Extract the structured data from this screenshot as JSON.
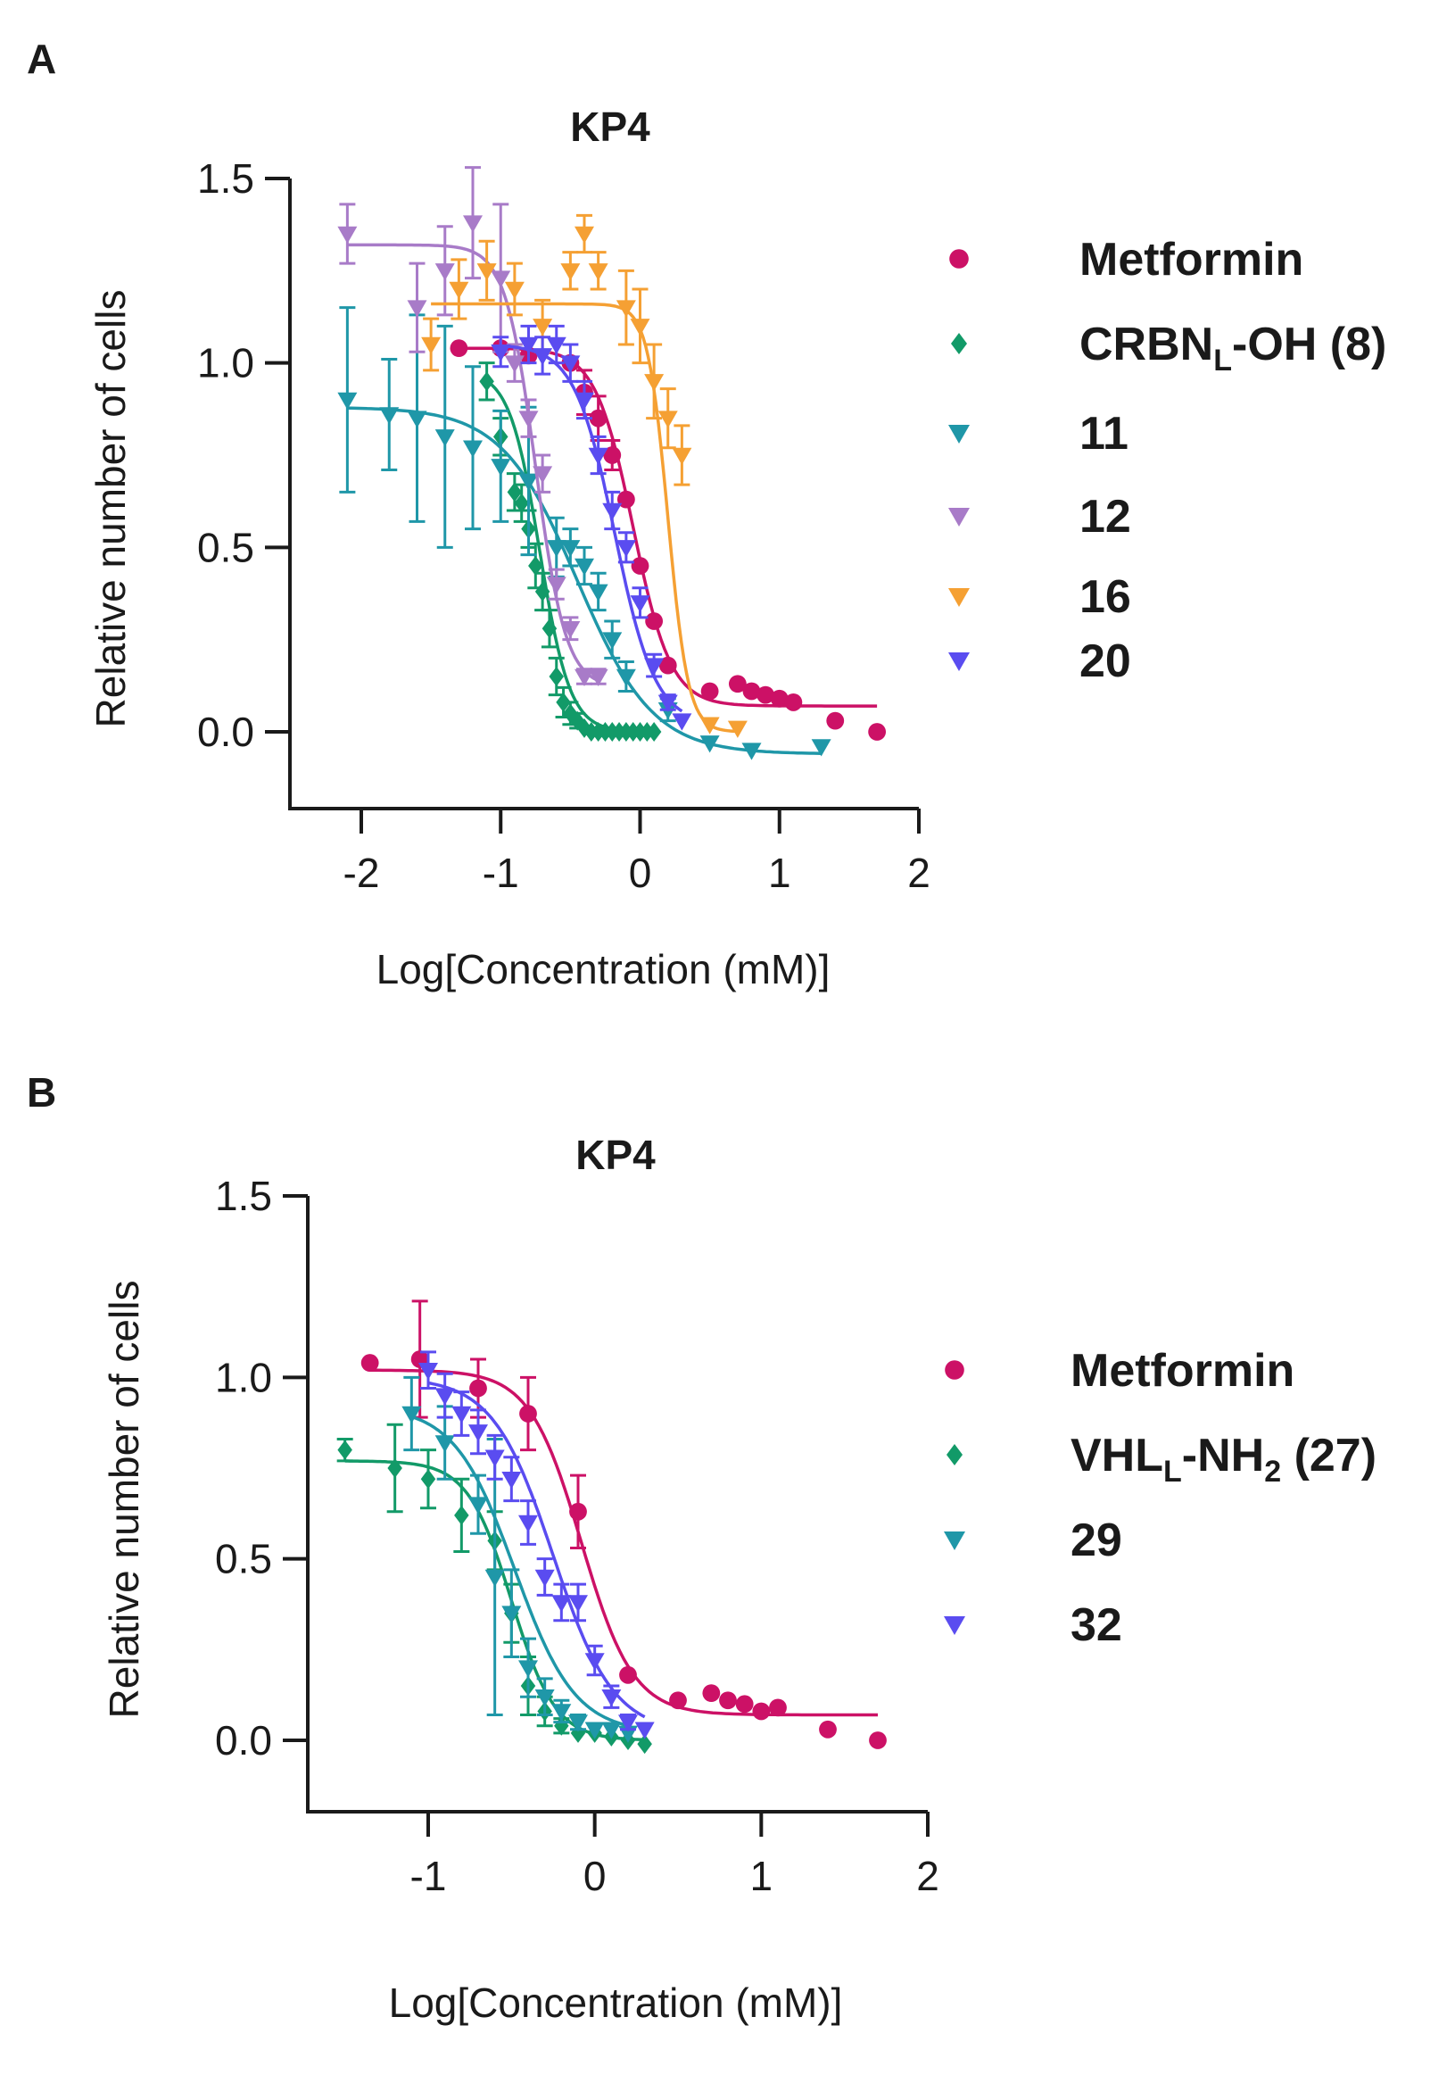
{
  "chart_data": [
    {
      "panel": "A",
      "type": "scatter",
      "title": "KP4",
      "xlabel": "Log[Concentration (mM)]",
      "ylabel": "Relative number of cells",
      "xlim": [
        -2.5,
        2
      ],
      "ylim": [
        -0.2,
        1.5
      ],
      "xticks": [
        -2,
        -1,
        0,
        1,
        2
      ],
      "yticks": [
        0.0,
        0.5,
        1.0,
        1.5
      ],
      "xtick_labels": [
        "-2",
        "-1",
        "0",
        "1",
        "2"
      ],
      "ytick_labels": [
        "0.0",
        "0.5",
        "1.0",
        "1.5"
      ],
      "grid": false,
      "legend_position": "right",
      "series": [
        {
          "name": "Metformin",
          "marker": "circle",
          "color": "#cc1166",
          "x": [
            -1.3,
            -1.0,
            -0.8,
            -0.5,
            -0.4,
            -0.3,
            -0.2,
            -0.1,
            0.0,
            0.1,
            0.2,
            0.5,
            0.7,
            0.8,
            0.9,
            1.0,
            1.1,
            1.4,
            1.7
          ],
          "y": [
            1.04,
            1.04,
            1.02,
            1.0,
            0.92,
            0.85,
            0.75,
            0.63,
            0.45,
            0.3,
            0.18,
            0.11,
            0.13,
            0.11,
            0.1,
            0.09,
            0.08,
            0.03,
            0.0
          ],
          "err": [
            0.0,
            0.0,
            0.0,
            0.0,
            0.06,
            0.06,
            0.04,
            0.0,
            0.0,
            0.0,
            0.0,
            0.0,
            0.0,
            0.0,
            0.0,
            0.0,
            0.0,
            0.0,
            0.0
          ],
          "fit": {
            "top": 1.04,
            "bottom": 0.07,
            "logEC50": -0.05,
            "hill": 3.2
          }
        },
        {
          "name": "CRBN_L-OH (8)",
          "label_main": "CRBN",
          "label_sub": "L",
          "label_rest": "-OH (8)",
          "marker": "diamond",
          "color": "#129a68",
          "x": [
            -1.1,
            -1.0,
            -0.9,
            -0.85,
            -0.8,
            -0.75,
            -0.7,
            -0.65,
            -0.6,
            -0.55,
            -0.5,
            -0.45,
            -0.4,
            -0.35,
            -0.3,
            -0.25,
            -0.2,
            -0.15,
            -0.1,
            -0.05,
            0.0,
            0.05,
            0.1
          ],
          "y": [
            0.95,
            0.8,
            0.65,
            0.62,
            0.55,
            0.45,
            0.38,
            0.28,
            0.15,
            0.08,
            0.05,
            0.03,
            0.01,
            0.0,
            0.0,
            0.0,
            0.0,
            0.0,
            0.0,
            0.0,
            0.0,
            0.0,
            0.0
          ],
          "err": [
            0.05,
            0.05,
            0.05,
            0.05,
            0.05,
            0.06,
            0.05,
            0.05,
            0.05,
            0.04,
            0.03,
            0.02,
            0.0,
            0.0,
            0.0,
            0.0,
            0.0,
            0.0,
            0.0,
            0.0,
            0.0,
            0.0,
            0.0
          ],
          "fit": {
            "top": 0.98,
            "bottom": 0.0,
            "logEC50": -0.72,
            "hill": 4.0
          }
        },
        {
          "name": "11",
          "marker": "triangle-down",
          "color": "#1f97a8",
          "x": [
            -2.1,
            -1.8,
            -1.6,
            -1.4,
            -1.2,
            -1.0,
            -0.8,
            -0.6,
            -0.5,
            -0.4,
            -0.3,
            -0.2,
            -0.1,
            0.2,
            0.5,
            0.8,
            1.3
          ],
          "y": [
            0.9,
            0.86,
            0.85,
            0.8,
            0.77,
            0.72,
            0.68,
            0.5,
            0.5,
            0.45,
            0.38,
            0.25,
            0.15,
            0.06,
            -0.03,
            -0.05,
            -0.04
          ],
          "err": [
            0.25,
            0.15,
            0.28,
            0.3,
            0.22,
            0.15,
            0.2,
            0.08,
            0.05,
            0.05,
            0.05,
            0.05,
            0.04,
            0.03,
            0.0,
            0.0,
            0.0
          ],
          "fit": {
            "top": 0.88,
            "bottom": -0.06,
            "logEC50": -0.45,
            "hill": 1.6
          }
        },
        {
          "name": "12",
          "marker": "triangle-down",
          "color": "#a87bc8",
          "x": [
            -2.1,
            -1.6,
            -1.4,
            -1.2,
            -1.0,
            -0.9,
            -0.8,
            -0.7,
            -0.6,
            -0.5,
            -0.4,
            -0.3
          ],
          "y": [
            1.35,
            1.15,
            1.25,
            1.38,
            1.23,
            1.0,
            0.85,
            0.7,
            0.4,
            0.28,
            0.15,
            0.15
          ],
          "err": [
            0.08,
            0.12,
            0.12,
            0.15,
            0.2,
            0.05,
            0.05,
            0.05,
            0.04,
            0.03,
            0.02,
            0.02
          ],
          "fit": {
            "top": 1.32,
            "bottom": 0.12,
            "logEC50": -0.75,
            "hill": 4.0
          }
        },
        {
          "name": "16",
          "marker": "triangle-down",
          "color": "#f5a033",
          "x": [
            -1.5,
            -1.3,
            -1.1,
            -0.9,
            -0.7,
            -0.5,
            -0.4,
            -0.3,
            -0.1,
            0.0,
            0.1,
            0.2,
            0.3,
            0.5,
            0.7
          ],
          "y": [
            1.05,
            1.2,
            1.25,
            1.2,
            1.1,
            1.25,
            1.35,
            1.25,
            1.15,
            1.1,
            0.95,
            0.85,
            0.75,
            0.02,
            0.01
          ],
          "err": [
            0.07,
            0.08,
            0.08,
            0.07,
            0.07,
            0.05,
            0.05,
            0.05,
            0.1,
            0.1,
            0.1,
            0.08,
            0.08,
            0.0,
            0.0
          ],
          "fit": {
            "top": 1.16,
            "bottom": 0.0,
            "logEC50": 0.2,
            "hill": 6.0
          }
        },
        {
          "name": "20",
          "marker": "triangle-down",
          "color": "#5a4cf0",
          "x": [
            -1.0,
            -0.8,
            -0.7,
            -0.6,
            -0.5,
            -0.4,
            -0.3,
            -0.2,
            -0.1,
            0.0,
            0.1,
            0.2,
            0.3
          ],
          "y": [
            1.03,
            1.05,
            1.02,
            1.05,
            1.0,
            0.9,
            0.75,
            0.6,
            0.5,
            0.35,
            0.18,
            0.08,
            0.03
          ],
          "err": [
            0.04,
            0.05,
            0.05,
            0.05,
            0.05,
            0.05,
            0.05,
            0.05,
            0.04,
            0.04,
            0.03,
            0.02,
            0.0
          ],
          "fit": {
            "top": 1.05,
            "bottom": 0.02,
            "logEC50": -0.18,
            "hill": 3.0
          }
        }
      ]
    },
    {
      "panel": "B",
      "type": "scatter",
      "title": "KP4",
      "xlabel": "Log[Concentration (mM)]",
      "ylabel": "Relative number of cells",
      "xlim": [
        -1.75,
        2
      ],
      "ylim": [
        -0.2,
        1.5
      ],
      "xticks": [
        -1,
        0,
        1,
        2
      ],
      "yticks": [
        0.0,
        0.5,
        1.0,
        1.5
      ],
      "xtick_labels": [
        "-1",
        "0",
        "1",
        "2"
      ],
      "ytick_labels": [
        "0.0",
        "0.5",
        "1.0",
        "1.5"
      ],
      "grid": false,
      "legend_position": "right",
      "series": [
        {
          "name": "Metformin",
          "marker": "circle",
          "color": "#cc1166",
          "x": [
            -1.35,
            -1.05,
            -0.7,
            -0.4,
            -0.1,
            0.2,
            0.5,
            0.7,
            0.8,
            0.9,
            1.0,
            1.1,
            1.4,
            1.7
          ],
          "y": [
            1.04,
            1.05,
            0.97,
            0.9,
            0.63,
            0.18,
            0.11,
            0.13,
            0.11,
            0.1,
            0.08,
            0.09,
            0.03,
            0.0
          ],
          "err": [
            0.0,
            0.16,
            0.08,
            0.1,
            0.1,
            0.0,
            0.0,
            0.0,
            0.0,
            0.0,
            0.0,
            0.0,
            0.0,
            0.0
          ],
          "fit": {
            "top": 1.02,
            "bottom": 0.07,
            "logEC50": -0.08,
            "hill": 2.8
          }
        },
        {
          "name": "VHL_L-NH2 (27)",
          "label_main": "VHL",
          "label_sub": "L",
          "label_mid": "-NH",
          "label_sub2": "2",
          "label_rest": " (27)",
          "marker": "diamond",
          "color": "#129a68",
          "x": [
            -1.5,
            -1.2,
            -1.0,
            -0.8,
            -0.6,
            -0.5,
            -0.4,
            -0.3,
            -0.2,
            -0.1,
            0.0,
            0.1,
            0.2,
            0.3
          ],
          "y": [
            0.8,
            0.75,
            0.72,
            0.62,
            0.55,
            0.35,
            0.15,
            0.08,
            0.04,
            0.02,
            0.02,
            0.01,
            0.0,
            -0.01
          ],
          "err": [
            0.03,
            0.12,
            0.08,
            0.1,
            0.08,
            0.08,
            0.08,
            0.04,
            0.02,
            0.0,
            0.0,
            0.0,
            0.0,
            0.0
          ],
          "fit": {
            "top": 0.77,
            "bottom": 0.0,
            "logEC50": -0.5,
            "hill": 3.3
          }
        },
        {
          "name": "29",
          "marker": "triangle-down",
          "color": "#1f97a8",
          "x": [
            -1.1,
            -0.9,
            -0.7,
            -0.6,
            -0.5,
            -0.4,
            -0.3,
            -0.2,
            -0.1,
            0.0,
            0.1,
            0.2
          ],
          "y": [
            0.9,
            0.82,
            0.65,
            0.45,
            0.35,
            0.2,
            0.12,
            0.08,
            0.05,
            0.03,
            0.03,
            0.02
          ],
          "err": [
            0.1,
            0.1,
            0.08,
            0.38,
            0.12,
            0.08,
            0.05,
            0.03,
            0.02,
            0.0,
            0.0,
            0.0
          ],
          "fit": {
            "top": 0.92,
            "bottom": 0.02,
            "logEC50": -0.48,
            "hill": 2.4
          }
        },
        {
          "name": "32",
          "marker": "triangle-down",
          "color": "#5a4cf0",
          "x": [
            -1.0,
            -0.9,
            -0.8,
            -0.7,
            -0.6,
            -0.5,
            -0.4,
            -0.3,
            -0.2,
            -0.1,
            0.0,
            0.1,
            0.2,
            0.3
          ],
          "y": [
            1.02,
            0.95,
            0.9,
            0.85,
            0.78,
            0.72,
            0.6,
            0.45,
            0.38,
            0.38,
            0.22,
            0.12,
            0.05,
            0.03
          ],
          "err": [
            0.05,
            0.06,
            0.06,
            0.06,
            0.06,
            0.06,
            0.06,
            0.05,
            0.05,
            0.05,
            0.04,
            0.03,
            0.02,
            0.0
          ],
          "fit": {
            "top": 1.0,
            "bottom": 0.02,
            "logEC50": -0.25,
            "hill": 2.4
          }
        }
      ]
    }
  ]
}
